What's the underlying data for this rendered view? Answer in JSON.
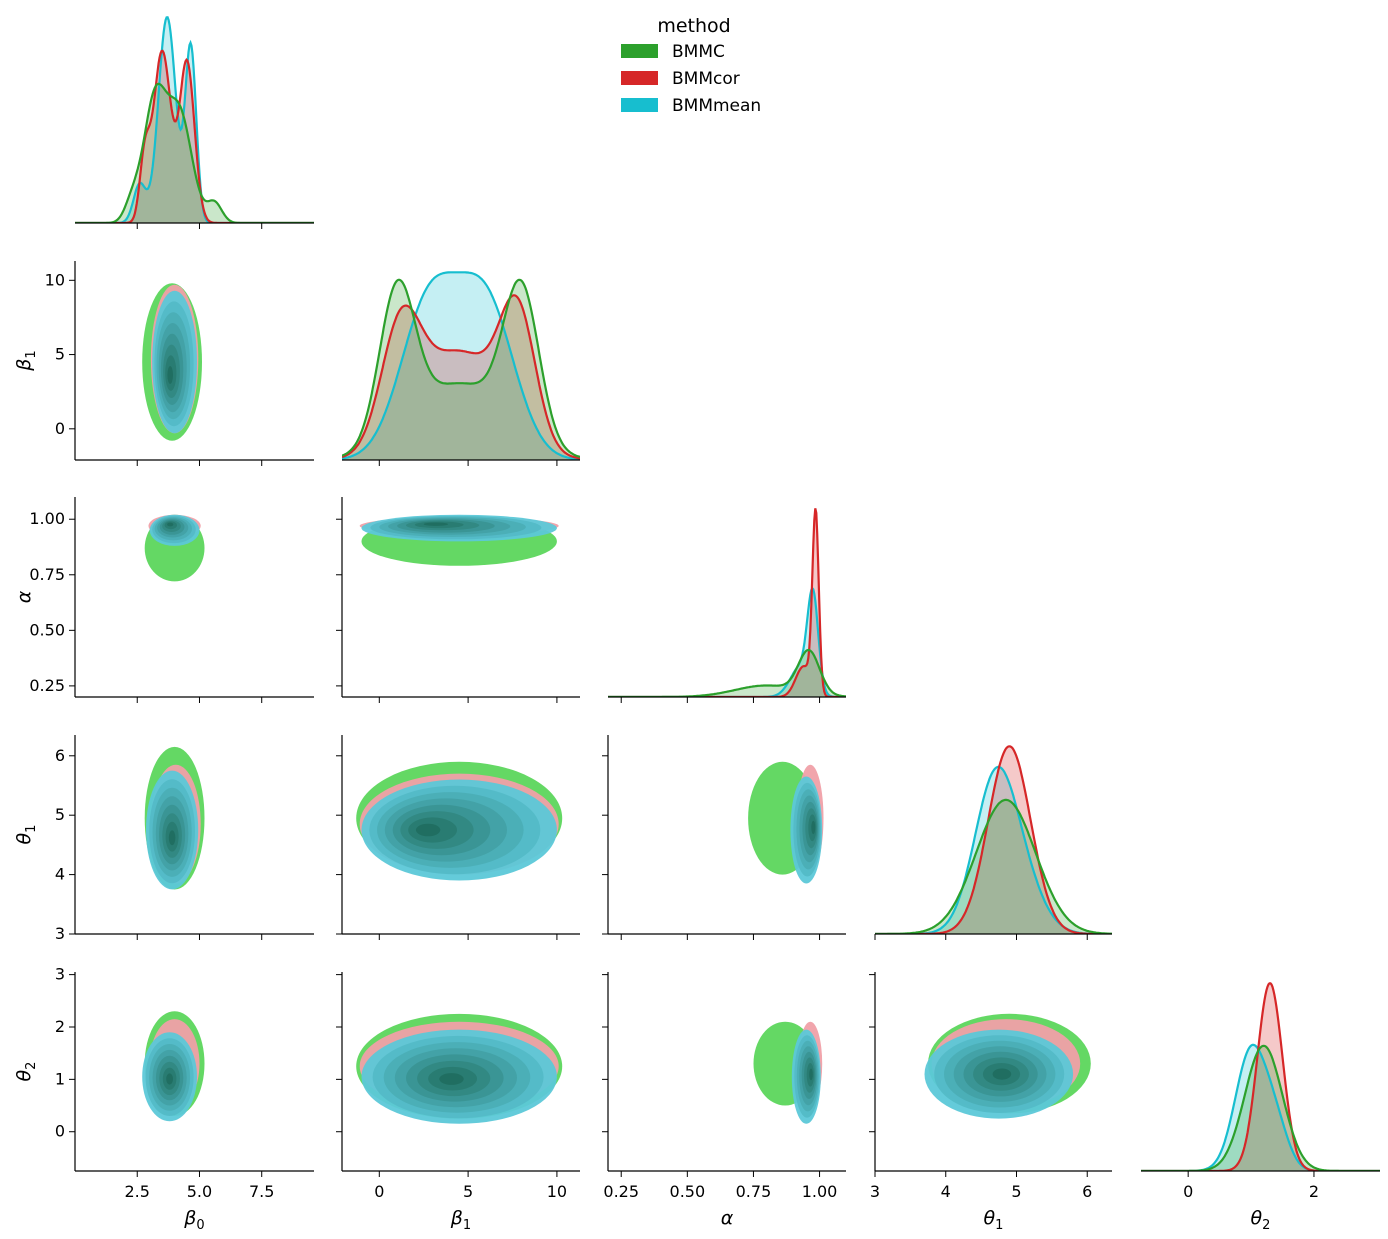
{
  "chart_data": {
    "type": "pairplot",
    "kind": "corner pair plot: KDE diagonal, filled KDE contours off-diagonal",
    "legend": {
      "title": "method",
      "entries": [
        {
          "label": "BMMC",
          "color": "#2ca02c",
          "fill": "#5cd65c"
        },
        {
          "label": "BMMcor",
          "color": "#d62728",
          "fill": "#f0a0a8"
        },
        {
          "label": "BMMmean",
          "color": "#17becf",
          "fill": "#5cc8d8"
        }
      ]
    },
    "variables": [
      {
        "key": "beta0",
        "name": "β",
        "sub": "0",
        "range": [
          0,
          9.6
        ],
        "ticks": [
          2.5,
          5.0,
          7.5
        ],
        "tick_labels": [
          "2.5",
          "5.0",
          "7.5"
        ]
      },
      {
        "key": "beta1",
        "name": "β",
        "sub": "1",
        "range": [
          -2.1,
          11.3
        ],
        "ticks": [
          0,
          5,
          10
        ],
        "tick_labels": [
          "0",
          "5",
          "10"
        ]
      },
      {
        "key": "alpha",
        "name": "α",
        "sub": "",
        "range": [
          0.2,
          1.1
        ],
        "ticks": [
          0.25,
          0.5,
          0.75,
          1.0
        ],
        "tick_labels": [
          "0.25",
          "0.50",
          "0.75",
          "1.00"
        ]
      },
      {
        "key": "theta1",
        "name": "θ",
        "sub": "1",
        "range": [
          3.0,
          6.35
        ],
        "ticks": [
          3,
          4,
          5,
          6
        ],
        "tick_labels": [
          "3",
          "4",
          "5",
          "6"
        ]
      },
      {
        "key": "theta2",
        "name": "θ",
        "sub": "2",
        "range": [
          -0.75,
          3.05
        ],
        "ticks": [
          0,
          1,
          2,
          3
        ],
        "tick_labels": [
          "0",
          "1",
          "2",
          "3"
        ]
      }
    ],
    "diagonal_axis_ticks": {
      "theta2": {
        "ticks": [
          0,
          2
        ],
        "tick_labels": [
          "0",
          "2"
        ]
      }
    },
    "diagonal_kde": {
      "beta0": {
        "BMMC": [
          {
            "m": 3.2,
            "s": 0.45,
            "w": 0.45
          },
          {
            "m": 4.2,
            "s": 0.5,
            "w": 0.45
          },
          {
            "m": 2.3,
            "s": 0.3,
            "w": 0.05
          },
          {
            "m": 5.6,
            "s": 0.3,
            "w": 0.05
          }
        ],
        "BMMcor": [
          {
            "m": 3.5,
            "s": 0.35,
            "w": 0.5
          },
          {
            "m": 4.5,
            "s": 0.3,
            "w": 0.4
          },
          {
            "m": 2.8,
            "s": 0.2,
            "w": 0.1
          }
        ],
        "BMMmean": [
          {
            "m": 3.7,
            "s": 0.35,
            "w": 0.6
          },
          {
            "m": 4.65,
            "s": 0.22,
            "w": 0.32
          },
          {
            "m": 2.6,
            "s": 0.25,
            "w": 0.08
          }
        ]
      },
      "beta1": {
        "BMMC": [
          {
            "m": 1.0,
            "s": 1.0,
            "w": 0.3
          },
          {
            "m": 8.0,
            "s": 1.0,
            "w": 0.3
          },
          {
            "m": 4.5,
            "s": 2.6,
            "w": 0.4
          }
        ],
        "BMMcor": [
          {
            "m": 1.2,
            "s": 1.1,
            "w": 0.25
          },
          {
            "m": 7.8,
            "s": 1.0,
            "w": 0.25
          },
          {
            "m": 4.5,
            "s": 2.3,
            "w": 0.5
          }
        ],
        "BMMmean": [
          {
            "m": 2.8,
            "s": 1.6,
            "w": 0.5
          },
          {
            "m": 6.0,
            "s": 1.6,
            "w": 0.5
          }
        ]
      },
      "alpha": {
        "BMMC": [
          {
            "m": 0.96,
            "s": 0.04,
            "w": 0.55
          },
          {
            "m": 0.8,
            "s": 0.12,
            "w": 0.45
          }
        ],
        "BMMcor": [
          {
            "m": 0.985,
            "s": 0.012,
            "w": 0.7
          },
          {
            "m": 0.94,
            "s": 0.03,
            "w": 0.3
          }
        ],
        "BMMmean": [
          {
            "m": 0.975,
            "s": 0.02,
            "w": 0.6
          },
          {
            "m": 0.93,
            "s": 0.04,
            "w": 0.4
          }
        ]
      },
      "theta1": {
        "BMMC": [
          {
            "m": 4.85,
            "s": 0.42,
            "w": 1.0
          }
        ],
        "BMMcor": [
          {
            "m": 4.9,
            "s": 0.3,
            "w": 1.0
          }
        ],
        "BMMmean": [
          {
            "m": 4.7,
            "s": 0.3,
            "w": 0.8
          },
          {
            "m": 5.1,
            "s": 0.3,
            "w": 0.2
          }
        ]
      },
      "theta2": {
        "BMMC": [
          {
            "m": 1.2,
            "s": 0.3,
            "w": 1.0
          }
        ],
        "BMMcor": [
          {
            "m": 1.3,
            "s": 0.2,
            "w": 1.0
          }
        ],
        "BMMmean": [
          {
            "m": 1.0,
            "s": 0.25,
            "w": 0.8
          },
          {
            "m": 1.4,
            "s": 0.2,
            "w": 0.2
          }
        ]
      }
    },
    "joint_kde": {
      "beta1|beta0": {
        "BMMC": {
          "x": 3.9,
          "y": 4.5,
          "rx": 1.2,
          "ry": 5.3,
          "dense": [
            3.9,
            4.0
          ]
        },
        "BMMcor": {
          "x": 4.0,
          "y": 4.7,
          "rx": 0.95,
          "ry": 5.0,
          "dense": [
            3.9,
            4.5
          ]
        },
        "BMMmean": {
          "x": 4.0,
          "y": 4.5,
          "rx": 0.9,
          "ry": 4.8,
          "dense": [
            3.8,
            3.5
          ]
        }
      },
      "alpha|beta0": {
        "BMMC": {
          "x": 4.0,
          "y": 0.87,
          "rx": 1.2,
          "ry": 0.15,
          "dense": [
            3.9,
            0.97
          ]
        },
        "BMMcor": {
          "x": 4.0,
          "y": 0.97,
          "rx": 1.05,
          "ry": 0.05,
          "dense": [
            3.9,
            0.98
          ]
        },
        "BMMmean": {
          "x": 4.0,
          "y": 0.95,
          "rx": 1.0,
          "ry": 0.07,
          "dense": [
            3.8,
            0.98
          ]
        }
      },
      "alpha|beta1": {
        "BMMC": {
          "x": 4.5,
          "y": 0.9,
          "rx": 5.5,
          "ry": 0.11,
          "dense": [
            3.5,
            0.97
          ]
        },
        "BMMcor": {
          "x": 4.5,
          "y": 0.97,
          "rx": 5.6,
          "ry": 0.04,
          "dense": [
            3.0,
            0.98
          ]
        },
        "BMMmean": {
          "x": 4.5,
          "y": 0.96,
          "rx": 5.5,
          "ry": 0.06,
          "dense": [
            3.0,
            0.98
          ]
        }
      },
      "theta1|beta0": {
        "BMMC": {
          "x": 4.0,
          "y": 4.95,
          "rx": 1.2,
          "ry": 1.2,
          "dense": [
            4.0,
            4.8
          ]
        },
        "BMMcor": {
          "x": 4.05,
          "y": 4.85,
          "rx": 1.0,
          "ry": 1.0,
          "dense": [
            4.0,
            4.7
          ]
        },
        "BMMmean": {
          "x": 3.9,
          "y": 4.75,
          "rx": 1.05,
          "ry": 1.0,
          "dense": [
            3.9,
            4.6
          ]
        }
      },
      "theta1|beta1": {
        "BMMC": {
          "x": 4.5,
          "y": 4.95,
          "rx": 5.8,
          "ry": 0.95,
          "dense": [
            3.0,
            4.75
          ]
        },
        "BMMcor": {
          "x": 4.5,
          "y": 4.85,
          "rx": 5.6,
          "ry": 0.85,
          "dense": [
            5.0,
            4.7
          ]
        },
        "BMMmean": {
          "x": 4.5,
          "y": 4.75,
          "rx": 5.5,
          "ry": 0.85,
          "dense": [
            2.5,
            4.75
          ]
        }
      },
      "theta1|alpha": {
        "BMMC": {
          "x": 0.86,
          "y": 4.95,
          "rx": 0.13,
          "ry": 0.95,
          "dense": [
            0.95,
            4.8
          ]
        },
        "BMMcor": {
          "x": 0.965,
          "y": 4.95,
          "rx": 0.05,
          "ry": 0.9,
          "dense": [
            0.98,
            4.9
          ]
        },
        "BMMmean": {
          "x": 0.95,
          "y": 4.75,
          "rx": 0.06,
          "ry": 0.9,
          "dense": [
            0.98,
            4.8
          ]
        }
      },
      "theta2|beta0": {
        "BMMC": {
          "x": 4.0,
          "y": 1.3,
          "rx": 1.2,
          "ry": 1.0,
          "dense": [
            3.9,
            1.1
          ]
        },
        "BMMcor": {
          "x": 4.0,
          "y": 1.3,
          "rx": 1.0,
          "ry": 0.85,
          "dense": [
            3.9,
            1.1
          ]
        },
        "BMMmean": {
          "x": 3.8,
          "y": 1.05,
          "rx": 1.1,
          "ry": 0.85,
          "dense": [
            3.8,
            1.0
          ]
        }
      },
      "theta2|beta1": {
        "BMMC": {
          "x": 4.5,
          "y": 1.25,
          "rx": 5.8,
          "ry": 1.0,
          "dense": [
            4.0,
            1.0
          ]
        },
        "BMMcor": {
          "x": 4.5,
          "y": 1.25,
          "rx": 5.6,
          "ry": 0.85,
          "dense": [
            4.0,
            1.0
          ]
        },
        "BMMmean": {
          "x": 4.5,
          "y": 1.05,
          "rx": 5.5,
          "ry": 0.9,
          "dense": [
            4.0,
            1.0
          ]
        }
      },
      "theta2|alpha": {
        "BMMC": {
          "x": 0.87,
          "y": 1.3,
          "rx": 0.12,
          "ry": 0.8,
          "dense": [
            0.96,
            1.2
          ]
        },
        "BMMcor": {
          "x": 0.965,
          "y": 1.3,
          "rx": 0.045,
          "ry": 0.8,
          "dense": [
            0.98,
            1.3
          ]
        },
        "BMMmean": {
          "x": 0.95,
          "y": 1.05,
          "rx": 0.055,
          "ry": 0.9,
          "dense": [
            0.97,
            1.1
          ]
        }
      },
      "theta2|theta1": {
        "BMMC": {
          "x": 4.9,
          "y": 1.3,
          "rx": 1.15,
          "ry": 0.95,
          "dense": [
            4.8,
            1.1
          ]
        },
        "BMMcor": {
          "x": 4.85,
          "y": 1.3,
          "rx": 1.05,
          "ry": 0.85,
          "dense": [
            4.8,
            1.1
          ]
        },
        "BMMmean": {
          "x": 4.75,
          "y": 1.1,
          "rx": 1.05,
          "ry": 0.85,
          "dense": [
            4.8,
            1.1
          ]
        }
      }
    }
  }
}
